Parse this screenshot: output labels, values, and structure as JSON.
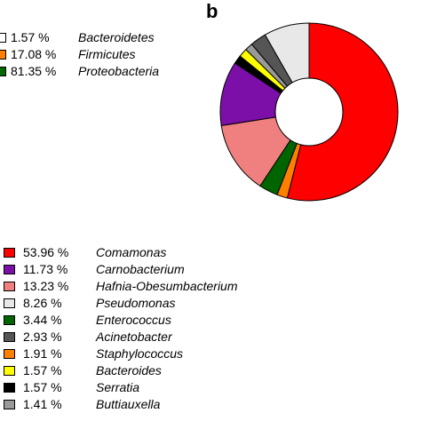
{
  "panel_label": "b",
  "legend_top": [
    {
      "pct": "1.57 %",
      "name": "Bacteroidetes",
      "color": "#ffffff"
    },
    {
      "pct": "17.08 %",
      "name": "Firmicutes",
      "color": "#ff7f00"
    },
    {
      "pct": "81.35 %",
      "name": "Proteobacteria",
      "color": "#006400"
    }
  ],
  "legend_bottom": [
    {
      "pct": "53.96 %",
      "name": "Comamonas",
      "color": "#ff0000"
    },
    {
      "pct": "11.73 %",
      "name": "Carnobacterium",
      "color": "#7b0fa8"
    },
    {
      "pct": "13.23 %",
      "name": "Hafnia-Obesumbacterium",
      "color": "#f08080"
    },
    {
      "pct": "8.26 %",
      "name": "Pseudomonas",
      "color": "#e8e8e8"
    },
    {
      "pct": "3.44 %",
      "name": "Enterococcus",
      "color": "#006400"
    },
    {
      "pct": "2.93 %",
      "name": "Acinetobacter",
      "color": "#555555"
    },
    {
      "pct": "1.91 %",
      "name": "Staphylococcus",
      "color": "#ff7f00"
    },
    {
      "pct": "1.57 %",
      "name": "Bacteroides",
      "color": "#ffff00"
    },
    {
      "pct": "1.57 %",
      "name": "Serratia",
      "color": "#000000"
    },
    {
      "pct": "1.41 %",
      "name": "Buttiauxella",
      "color": "#999999"
    }
  ],
  "chart_data": {
    "type": "pie",
    "donut": true,
    "slices": [
      {
        "label": "Comamonas",
        "value": 53.96,
        "color": "#ff0000"
      },
      {
        "label": "Staphylococcus",
        "value": 1.91,
        "color": "#ff7f00"
      },
      {
        "label": "Enterococcus",
        "value": 3.44,
        "color": "#006400"
      },
      {
        "label": "Hafnia-Obesumbacterium",
        "value": 13.23,
        "color": "#f08080"
      },
      {
        "label": "Carnobacterium",
        "value": 11.73,
        "color": "#7b0fa8"
      },
      {
        "label": "Serratia",
        "value": 1.57,
        "color": "#000000"
      },
      {
        "label": "Bacteroides",
        "value": 1.57,
        "color": "#ffff00"
      },
      {
        "label": "Buttiauxella",
        "value": 1.41,
        "color": "#999999"
      },
      {
        "label": "Acinetobacter",
        "value": 2.93,
        "color": "#555555"
      },
      {
        "label": "Pseudomonas",
        "value": 8.26,
        "color": "#e8e8e8"
      }
    ]
  }
}
